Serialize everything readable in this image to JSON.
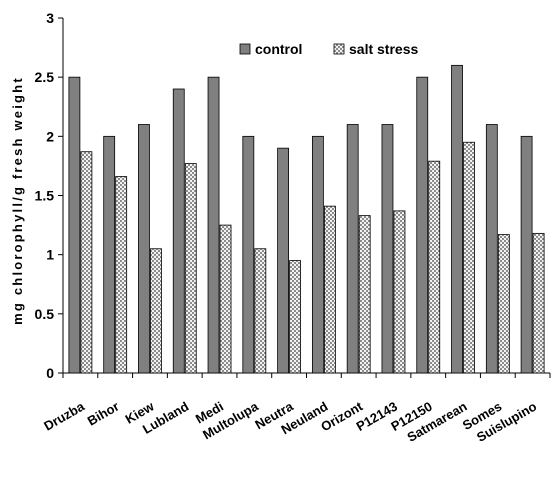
{
  "chart_data": {
    "type": "bar",
    "title": "",
    "xlabel": "",
    "ylabel": "mg chlorophyll/g fresh weight",
    "ylim": [
      0,
      3
    ],
    "yticks": [
      "0",
      "0.5",
      "1",
      "1.5",
      "2",
      "2.5",
      "3"
    ],
    "grid": false,
    "legend_position": "top-center",
    "categories": [
      "Druzba",
      "Bihor",
      "Kiew",
      "Lubland",
      "Medi",
      "Multolupa",
      "Neutra",
      "Neuland",
      "Orizont",
      "P12143",
      "P12150",
      "Satmarean",
      "Somes",
      "Suislupino"
    ],
    "series": [
      {
        "name": "control",
        "color": "#808080",
        "pattern": "solid",
        "values": [
          2.5,
          2.0,
          2.1,
          2.4,
          2.5,
          2.0,
          1.9,
          2.0,
          2.1,
          2.1,
          2.5,
          2.6,
          2.1,
          2.0
        ]
      },
      {
        "name": "salt stress",
        "color": "#e0e0e0",
        "pattern": "checker",
        "values": [
          1.87,
          1.66,
          1.05,
          1.77,
          1.25,
          1.05,
          0.95,
          1.41,
          1.33,
          1.37,
          1.79,
          1.95,
          1.17,
          1.18
        ]
      }
    ]
  }
}
